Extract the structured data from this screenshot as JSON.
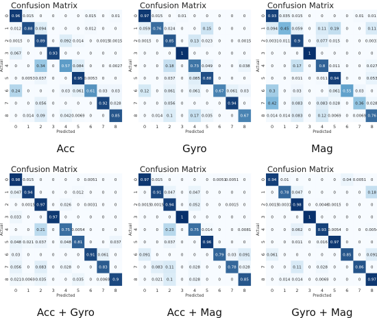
{
  "chart_data": [
    {
      "type": "heatmap",
      "title": "Confusion Matrix",
      "caption": "Acc",
      "xlabel": "Predicted",
      "ylabel": "Actual",
      "x_ticks": [
        "0",
        "1",
        "2",
        "3",
        "4",
        "5",
        "6",
        "7",
        "8"
      ],
      "y_ticks": [
        "0",
        "1",
        "2",
        "3",
        "4",
        "5",
        "6",
        "7",
        "8"
      ],
      "values": [
        [
          0.96,
          0.015,
          0,
          0,
          0,
          0,
          0.015,
          0,
          0.01
        ],
        [
          0.012,
          0.88,
          0.094,
          0,
          0,
          0,
          0.012,
          0,
          0
        ],
        [
          0.0015,
          0,
          0.89,
          0,
          0.092,
          0.014,
          0,
          0.0015,
          0.0015
        ],
        [
          0.067,
          0,
          0,
          0.93,
          0,
          0,
          0,
          0,
          0
        ],
        [
          0,
          0,
          0.34,
          0,
          0.57,
          0.084,
          0,
          0,
          0.0027
        ],
        [
          0,
          0.0053,
          0.037,
          0,
          0,
          0.95,
          0.0053,
          0,
          0
        ],
        [
          0.24,
          0,
          0,
          0,
          0.03,
          0.061,
          0.61,
          0.03,
          0.03
        ],
        [
          0,
          0,
          0.056,
          0,
          0,
          0,
          0,
          0.92,
          0.028
        ],
        [
          0,
          0.014,
          0.09,
          0,
          0.042,
          0.0069,
          0,
          0,
          0.85
        ]
      ]
    },
    {
      "type": "heatmap",
      "title": "Confusion Matrix",
      "caption": "Gyro",
      "xlabel": "Predicted",
      "ylabel": "Actual",
      "x_ticks": [
        "0",
        "1",
        "2",
        "3",
        "4",
        "5",
        "6",
        "7",
        "8"
      ],
      "y_ticks": [
        "0",
        "1",
        "2",
        "3",
        "4",
        "5",
        "6",
        "7",
        "8"
      ],
      "values": [
        [
          0.97,
          0.015,
          0,
          0.01,
          0,
          0,
          0,
          0,
          0
        ],
        [
          0.059,
          0.76,
          0.024,
          0,
          0,
          0.15,
          0,
          0,
          0
        ],
        [
          0.0015,
          0,
          0.85,
          0,
          0.13,
          0.023,
          0,
          0,
          0.0015
        ],
        [
          0,
          0,
          0,
          1,
          0,
          0,
          0,
          0,
          0
        ],
        [
          0,
          0,
          0.18,
          0,
          0.73,
          0.049,
          0,
          0,
          0.038
        ],
        [
          0,
          0,
          0.037,
          0,
          0.085,
          0.88,
          0,
          0,
          0
        ],
        [
          0.12,
          0,
          0.061,
          0,
          0.061,
          0,
          0.67,
          0.061,
          0.03
        ],
        [
          0,
          0,
          0.056,
          0,
          0,
          0,
          0,
          0.94,
          0
        ],
        [
          0,
          0.014,
          0.1,
          0,
          0.17,
          0.035,
          0,
          0,
          0.67
        ]
      ]
    },
    {
      "type": "heatmap",
      "title": "Confusion Matrix",
      "caption": "Mag",
      "xlabel": "Predicted",
      "ylabel": "Actual",
      "x_ticks": [
        "0",
        "1",
        "2",
        "3",
        "4",
        "5",
        "6",
        "7",
        "8"
      ],
      "y_ticks": [
        "0",
        "1",
        "2",
        "3",
        "4",
        "5",
        "6",
        "7",
        "8"
      ],
      "values": [
        [
          0.93,
          0.035,
          0.015,
          0,
          0,
          0,
          0,
          0.01,
          0.01
        ],
        [
          0.094,
          0.45,
          0.059,
          0,
          0.11,
          0.19,
          0,
          0,
          0.11
        ],
        [
          0.0031,
          0.011,
          0.9,
          0,
          0.077,
          0.015,
          0,
          0,
          0.0031
        ],
        [
          0,
          0,
          0,
          1,
          0,
          0,
          0,
          0,
          0
        ],
        [
          0,
          0,
          0.17,
          0,
          0.8,
          0.011,
          0,
          0,
          0.027
        ],
        [
          0,
          0,
          0.011,
          0,
          0.011,
          0.94,
          0,
          0,
          0.053
        ],
        [
          0.3,
          0,
          0.03,
          0,
          0,
          0.061,
          0.55,
          0.03,
          0
        ],
        [
          0.42,
          0,
          0.083,
          0,
          0.083,
          0.028,
          0,
          0.36,
          0.028
        ],
        [
          0.014,
          0.014,
          0.083,
          0,
          0.12,
          0.0069,
          0,
          0.0069,
          0.76
        ]
      ]
    },
    {
      "type": "heatmap",
      "title": "Confusion Matrix",
      "caption": "Acc + Gyro",
      "xlabel": "Predicted",
      "ylabel": "Actual",
      "x_ticks": [
        "0",
        "1",
        "2",
        "3",
        "4",
        "5",
        "6",
        "7",
        "8"
      ],
      "y_ticks": [
        "0",
        "1",
        "2",
        "3",
        "4",
        "5",
        "6",
        "7",
        "8"
      ],
      "values": [
        [
          0.98,
          0.015,
          0,
          0,
          0,
          0,
          0.0051,
          0,
          0
        ],
        [
          0.047,
          0.94,
          0,
          0,
          0,
          0.012,
          0,
          0,
          0
        ],
        [
          0,
          0.0015,
          0.97,
          0,
          0.026,
          0,
          0.0031,
          0,
          0
        ],
        [
          0.033,
          0,
          0,
          0.97,
          0,
          0,
          0,
          0,
          0
        ],
        [
          0,
          0,
          0.21,
          0,
          0.75,
          0.0054,
          0,
          0,
          0
        ],
        [
          0.048,
          0.021,
          0.037,
          0,
          0.048,
          0.81,
          0,
          0,
          0.037
        ],
        [
          0.03,
          0,
          0,
          0,
          0,
          0,
          0.91,
          0.061,
          0
        ],
        [
          0.056,
          0,
          0.083,
          0,
          0.028,
          0,
          0,
          0.83,
          0
        ],
        [
          0.021,
          0.0069,
          0.035,
          0,
          0,
          0.035,
          0,
          0.0069,
          0.9
        ]
      ]
    },
    {
      "type": "heatmap",
      "title": "Confusion Matrix",
      "caption": "Acc + Mag",
      "xlabel": "Predicted",
      "ylabel": "Actual",
      "x_ticks": [
        "0",
        "1",
        "2",
        "3",
        "4",
        "5",
        "6",
        "7",
        "8"
      ],
      "y_ticks": [
        "0",
        "1",
        "2",
        "3",
        "4",
        "5",
        "6",
        "7",
        "8"
      ],
      "values": [
        [
          0.97,
          0.015,
          0,
          0,
          0,
          0,
          0.0051,
          0.0051,
          0
        ],
        [
          0,
          0.91,
          0.047,
          0,
          0.047,
          0,
          0,
          0,
          0
        ],
        [
          0.0015,
          0.0015,
          0.94,
          0,
          0.052,
          0,
          0,
          0.0015,
          0
        ],
        [
          0,
          0,
          0,
          1,
          0,
          0,
          0,
          0,
          0
        ],
        [
          0,
          0,
          0.23,
          0,
          0.75,
          0.014,
          0,
          0,
          0.0081
        ],
        [
          0,
          0,
          0.037,
          0,
          0,
          0.96,
          0,
          0,
          0
        ],
        [
          0.091,
          0,
          0,
          0,
          0,
          0,
          0.79,
          0.03,
          0.091
        ],
        [
          0,
          0.083,
          0.11,
          0,
          0.028,
          0,
          0,
          0.78,
          0.028
        ],
        [
          0,
          0.021,
          0.1,
          0,
          0.028,
          0,
          0,
          0,
          0.85
        ]
      ]
    },
    {
      "type": "heatmap",
      "title": "Confusion Matrix",
      "caption": "Gyro + Mag",
      "xlabel": "Predicted",
      "ylabel": "Actual",
      "x_ticks": [
        "0",
        "1",
        "2",
        "3",
        "4",
        "5",
        "6",
        "7",
        "8"
      ],
      "y_ticks": [
        "0",
        "1",
        "2",
        "3",
        "4",
        "5",
        "6",
        "7",
        "8"
      ],
      "values": [
        [
          0.94,
          0.01,
          0,
          0,
          0,
          0,
          0.04,
          0.0051,
          0
        ],
        [
          0,
          0.78,
          0.047,
          0,
          0,
          0,
          0,
          0,
          0.18
        ],
        [
          0.0015,
          0.0031,
          0.98,
          0,
          0.0046,
          0.0015,
          0,
          0,
          0
        ],
        [
          0,
          0,
          0,
          1,
          0,
          0,
          0,
          0,
          0
        ],
        [
          0,
          0,
          0.062,
          0,
          0.93,
          0.0054,
          0,
          0,
          0.0054
        ],
        [
          0,
          0,
          0.011,
          0,
          0.016,
          0.97,
          0,
          0,
          0
        ],
        [
          0.061,
          0,
          0,
          0,
          0,
          0,
          0.85,
          0,
          0.091
        ],
        [
          0,
          0,
          0.11,
          0,
          0.028,
          0,
          0,
          0.86,
          0
        ],
        [
          0,
          0.014,
          0.014,
          0,
          0.0069,
          0,
          0,
          0,
          0.97
        ]
      ]
    }
  ],
  "colors": {
    "low": "#f7fbff",
    "mid": "#6baed6",
    "high": "#08306b",
    "text_dark": "#262626",
    "text_light": "#ffffff"
  }
}
